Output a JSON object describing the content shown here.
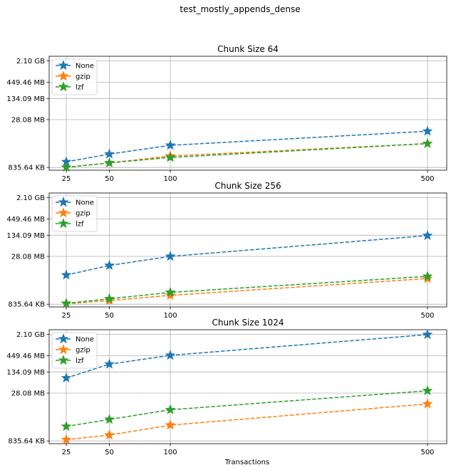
{
  "figure": {
    "suptitle": "test_mostly_appends_dense",
    "xlabel": "Transactions"
  },
  "chart_data": [
    {
      "type": "line",
      "title": "Chunk Size 64",
      "xlabel": "",
      "ylabel": "",
      "x_scale": "categorical-sqrt-spaced",
      "y_scale": "log",
      "x": [
        25,
        50,
        100,
        500
      ],
      "x_tick_labels": [
        "25",
        "50",
        "100",
        "500"
      ],
      "y_ticks": [
        {
          "label": "2.10 GB",
          "bytes": 2254857830
        },
        {
          "label": "449.46 MB",
          "bytes": 471293952
        },
        {
          "label": "134.09 MB",
          "bytes": 140604375
        },
        {
          "label": "28.08 MB",
          "bytes": 29443604
        },
        {
          "label": "835.64 KB",
          "bytes": 855695
        }
      ],
      "ylim_bytes": [
        700000,
        3200000000
      ],
      "grid": true,
      "legend_position": "upper left",
      "marker": "star",
      "line_style": "dashed",
      "series": [
        {
          "name": "None",
          "color": "#1f77b4",
          "values": [
            1300000,
            2300000,
            4400000,
            12500000
          ]
        },
        {
          "name": "gzip",
          "color": "#ff7f0e",
          "values": [
            870000,
            1200000,
            2000000,
            5000000
          ]
        },
        {
          "name": "lzf",
          "color": "#2ca02c",
          "values": [
            870000,
            1200000,
            1800000,
            5000000
          ]
        }
      ]
    },
    {
      "type": "line",
      "title": "Chunk Size 256",
      "xlabel": "",
      "ylabel": "",
      "x_scale": "categorical-sqrt-spaced",
      "y_scale": "log",
      "x": [
        25,
        50,
        100,
        500
      ],
      "x_tick_labels": [
        "25",
        "50",
        "100",
        "500"
      ],
      "y_ticks": [
        {
          "label": "2.10 GB",
          "bytes": 2254857830
        },
        {
          "label": "449.46 MB",
          "bytes": 471293952
        },
        {
          "label": "134.09 MB",
          "bytes": 140604375
        },
        {
          "label": "28.08 MB",
          "bytes": 29443604
        },
        {
          "label": "835.64 KB",
          "bytes": 855695
        }
      ],
      "ylim_bytes": [
        700000,
        3200000000
      ],
      "grid": true,
      "legend_position": "upper left",
      "marker": "star",
      "line_style": "dashed",
      "series": [
        {
          "name": "None",
          "color": "#1f77b4",
          "values": [
            7400000,
            15000000,
            29400000,
            137000000
          ]
        },
        {
          "name": "gzip",
          "color": "#ff7f0e",
          "values": [
            890000,
            1120000,
            1650000,
            5700000
          ]
        },
        {
          "name": "lzf",
          "color": "#2ca02c",
          "values": [
            910000,
            1280000,
            2050000,
            6700000
          ]
        }
      ]
    },
    {
      "type": "line",
      "title": "Chunk Size 1024",
      "xlabel": "Transactions",
      "ylabel": "",
      "x_scale": "categorical-sqrt-spaced",
      "y_scale": "log",
      "x": [
        25,
        50,
        100,
        500
      ],
      "x_tick_labels": [
        "25",
        "50",
        "100",
        "500"
      ],
      "y_ticks": [
        {
          "label": "2.10 GB",
          "bytes": 2254857830
        },
        {
          "label": "449.46 MB",
          "bytes": 471293952
        },
        {
          "label": "134.09 MB",
          "bytes": 140604375
        },
        {
          "label": "28.08 MB",
          "bytes": 29443604
        },
        {
          "label": "835.64 KB",
          "bytes": 855695
        }
      ],
      "ylim_bytes": [
        700000,
        3200000000
      ],
      "grid": true,
      "legend_position": "upper left",
      "marker": "star",
      "line_style": "dashed",
      "series": [
        {
          "name": "None",
          "color": "#1f77b4",
          "values": [
            90000000,
            250000000,
            480000000,
            2230000000
          ]
        },
        {
          "name": "gzip",
          "color": "#ff7f0e",
          "values": [
            940000,
            1320000,
            2760000,
            13200000
          ]
        },
        {
          "name": "lzf",
          "color": "#2ca02c",
          "values": [
            2500000,
            4200000,
            8600000,
            35000000
          ]
        }
      ]
    }
  ]
}
